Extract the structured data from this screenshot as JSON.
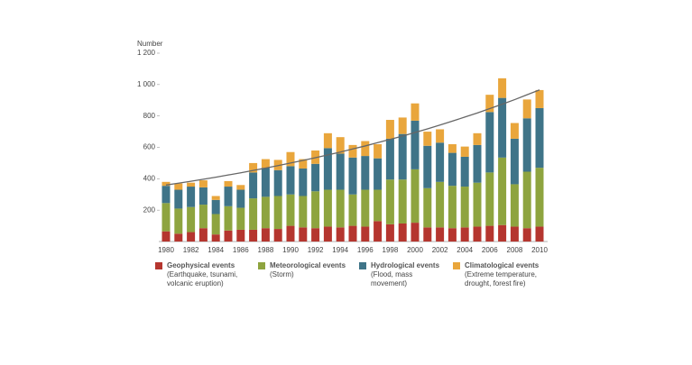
{
  "chart_data": {
    "type": "stacked_bar",
    "y_label": "Number",
    "categories": [
      "1980",
      null,
      "1982",
      null,
      "1984",
      null,
      "1986",
      null,
      "1988",
      null,
      "1990",
      null,
      "1992",
      null,
      "1994",
      null,
      "1996",
      null,
      "1998",
      null,
      "2000",
      null,
      "2002",
      null,
      "2004",
      null,
      "2006",
      null,
      "2008",
      null,
      "2010"
    ],
    "ylim": [
      0,
      1200
    ],
    "yticks": [
      200,
      400,
      600,
      800,
      {
        "value": 1000,
        "label": "1 000"
      },
      {
        "value": 1200,
        "label": "1 200"
      }
    ],
    "series": [
      {
        "name": "Geophysical events",
        "description": [
          "(Earthquake, tsunami,",
          "volcanic eruption)"
        ],
        "color": "#b5362f",
        "values": [
          65,
          50,
          60,
          85,
          45,
          70,
          75,
          75,
          85,
          80,
          100,
          90,
          85,
          95,
          90,
          100,
          95,
          130,
          110,
          115,
          120,
          90,
          90,
          85,
          90,
          95,
          100,
          105,
          95,
          85,
          95
        ]
      },
      {
        "name": "Meteorological events",
        "description": [
          "(Storm)"
        ],
        "color": "#8ea43f",
        "values": [
          180,
          160,
          160,
          150,
          130,
          155,
          140,
          200,
          200,
          210,
          200,
          200,
          235,
          235,
          240,
          200,
          235,
          200,
          285,
          280,
          340,
          250,
          290,
          270,
          260,
          280,
          340,
          430,
          270,
          360,
          375
        ]
      },
      {
        "name": "Hydrological events",
        "description": [
          "(Flood, mass",
          "movement)"
        ],
        "color": "#3f7488",
        "values": [
          110,
          120,
          130,
          110,
          90,
          125,
          115,
          165,
          185,
          165,
          180,
          175,
          175,
          265,
          230,
          235,
          215,
          200,
          260,
          290,
          310,
          270,
          250,
          210,
          190,
          240,
          385,
          380,
          290,
          340,
          380
        ]
      },
      {
        "name": "Climatological events",
        "description": [
          "(Extreme temperature,",
          "drought, forest fire)"
        ],
        "color": "#e9a63c",
        "values": [
          25,
          40,
          25,
          45,
          25,
          35,
          30,
          60,
          55,
          65,
          90,
          60,
          85,
          95,
          105,
          80,
          95,
          90,
          120,
          105,
          110,
          90,
          85,
          55,
          65,
          75,
          110,
          125,
          100,
          120,
          115
        ]
      }
    ],
    "trend": {
      "color": "#666666",
      "values": [
        360,
        372,
        384,
        397,
        410,
        424,
        438,
        453,
        468,
        484,
        500,
        517,
        534,
        552,
        570,
        590,
        609,
        630,
        651,
        672,
        695,
        718,
        742,
        767,
        793,
        819,
        847,
        875,
        904,
        935,
        966
      ]
    }
  }
}
